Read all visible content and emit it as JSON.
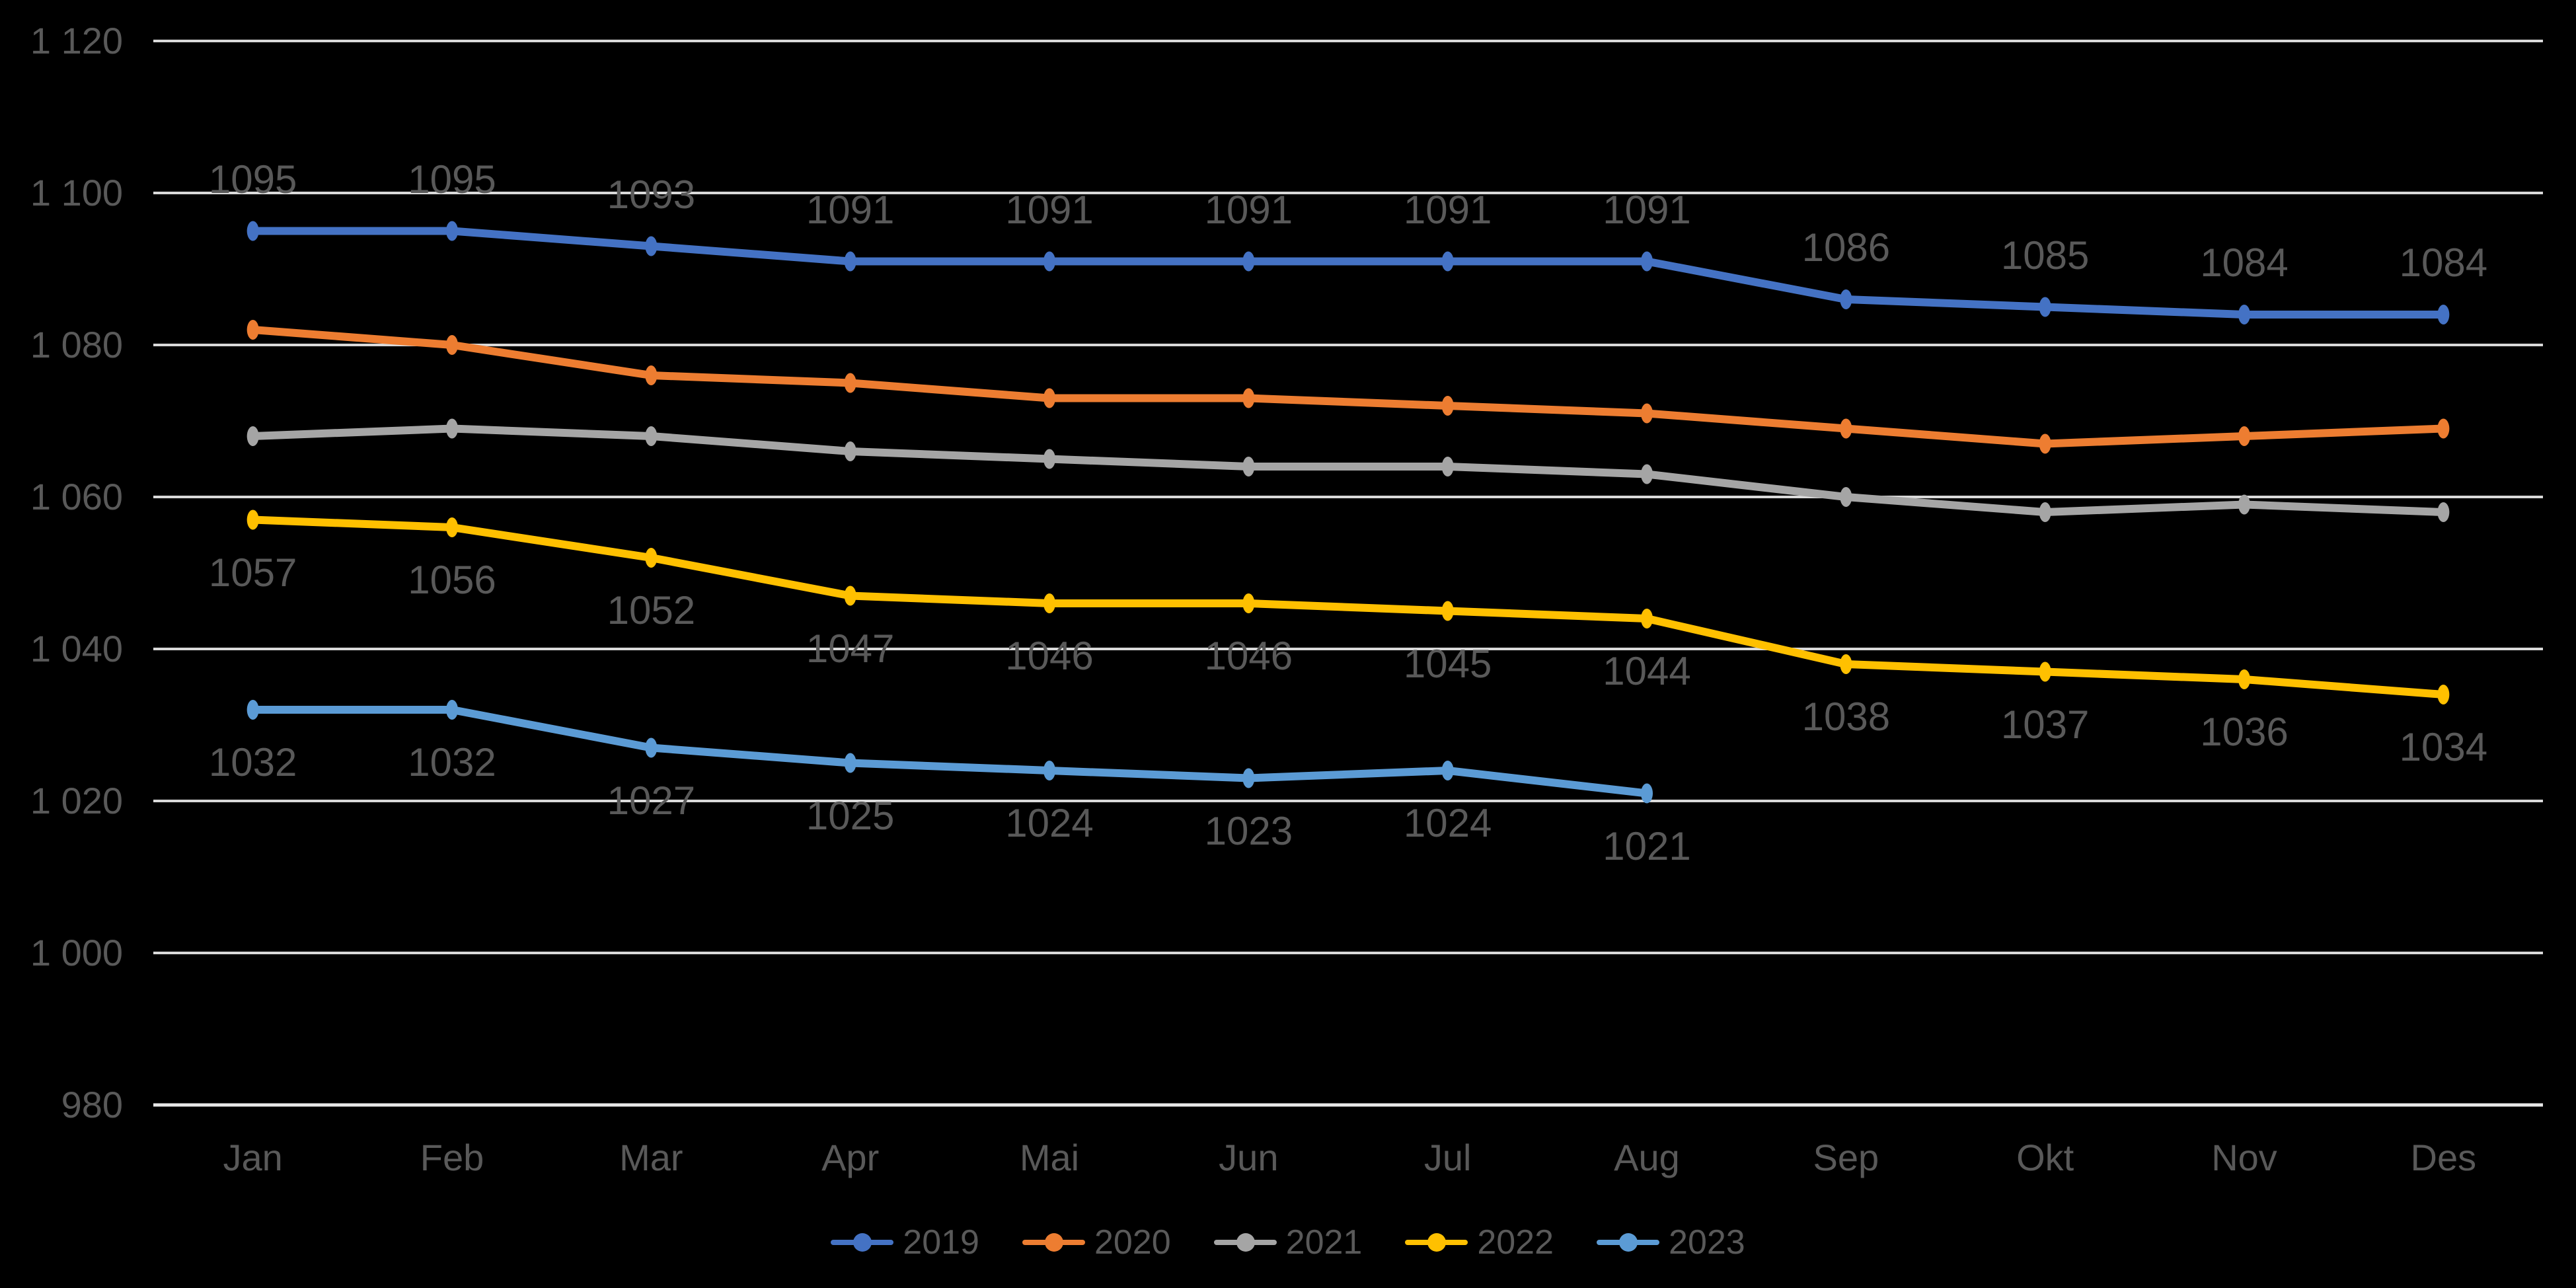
{
  "chart_data": {
    "type": "line",
    "title": "",
    "categories": [
      "Jan",
      "Feb",
      "Mar",
      "Apr",
      "Mai",
      "Jun",
      "Jul",
      "Aug",
      "Sep",
      "Okt",
      "Nov",
      "Des"
    ],
    "y_axis": {
      "min": 980,
      "max": 1120,
      "step": 20,
      "tick_labels": [
        "980",
        "1 000",
        "1 020",
        "1 040",
        "1 060",
        "1 080",
        "1 100",
        "1 120"
      ]
    },
    "grid": true,
    "legend_position": "bottom",
    "background_color": "#000000",
    "text_color": "#595959",
    "gridline_color": "#D9D9D9",
    "axisline_color": "#E8E8E8",
    "series": [
      {
        "name": "2019",
        "color": "#4472C4",
        "values": [
          1095,
          1095,
          1093,
          1091,
          1091,
          1091,
          1091,
          1091,
          1086,
          1085,
          1084,
          1084
        ],
        "labels_shown": true,
        "label_position": "above"
      },
      {
        "name": "2020",
        "color": "#ED7D31",
        "values": [
          1082,
          1080,
          1076,
          1075,
          1073,
          1073,
          1072,
          1071,
          1069,
          1067,
          1068,
          1069
        ],
        "labels_shown": false,
        "label_position": "none"
      },
      {
        "name": "2021",
        "color": "#A5A5A5",
        "values": [
          1068,
          1069,
          1068,
          1066,
          1065,
          1064,
          1064,
          1063,
          1060,
          1058,
          1059,
          1058
        ],
        "labels_shown": false,
        "label_position": "none"
      },
      {
        "name": "2022",
        "color": "#FFC000",
        "values": [
          1057,
          1056,
          1052,
          1047,
          1046,
          1046,
          1045,
          1044,
          1038,
          1037,
          1036,
          1034
        ],
        "labels_shown": true,
        "label_position": "below"
      },
      {
        "name": "2023",
        "color": "#5B9BD5",
        "values": [
          1032,
          1032,
          1027,
          1025,
          1024,
          1023,
          1024,
          1021
        ],
        "labels_shown": true,
        "label_position": "below"
      }
    ]
  }
}
